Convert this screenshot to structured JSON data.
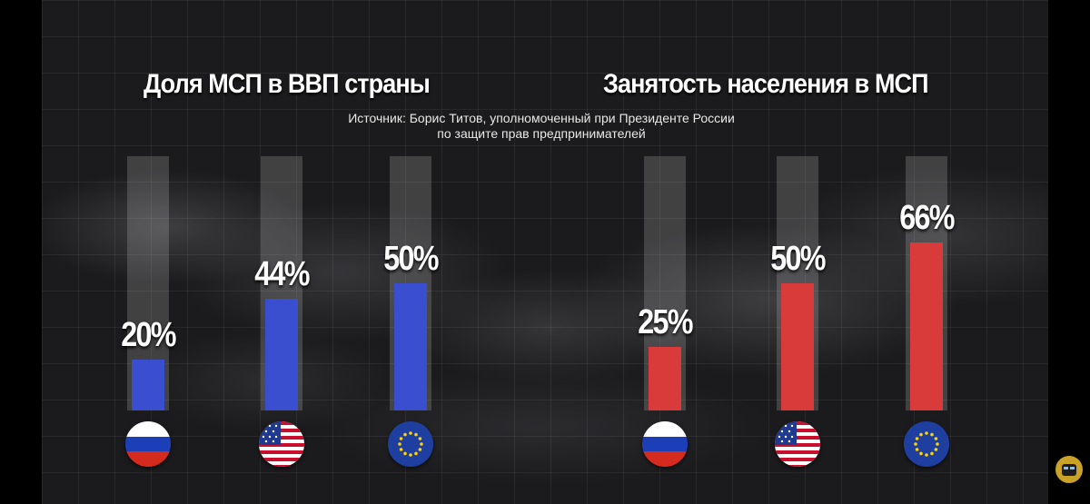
{
  "chart_data": [
    {
      "type": "bar",
      "title": "Доля МСП в ВВП страны",
      "categories": [
        "russia",
        "usa",
        "eu"
      ],
      "values": [
        20,
        44,
        50
      ],
      "labels": [
        "20%",
        "44%",
        "50%"
      ],
      "ylim": [
        0,
        100
      ],
      "color": "#3a4fcf"
    },
    {
      "type": "bar",
      "title": "Занятость населения в МСП",
      "categories": [
        "russia",
        "usa",
        "eu"
      ],
      "values": [
        25,
        50,
        66
      ],
      "labels": [
        "25%",
        "50%",
        "66%"
      ],
      "ylim": [
        0,
        100
      ],
      "color": "#d93a3a"
    }
  ],
  "source": {
    "line1": "Источник: Борис Титов,  уполномоченный при Президенте России",
    "line2": "по защите прав предпринимателей"
  },
  "flags": [
    "russia-flag-icon",
    "usa-flag-icon",
    "eu-flag-icon"
  ]
}
